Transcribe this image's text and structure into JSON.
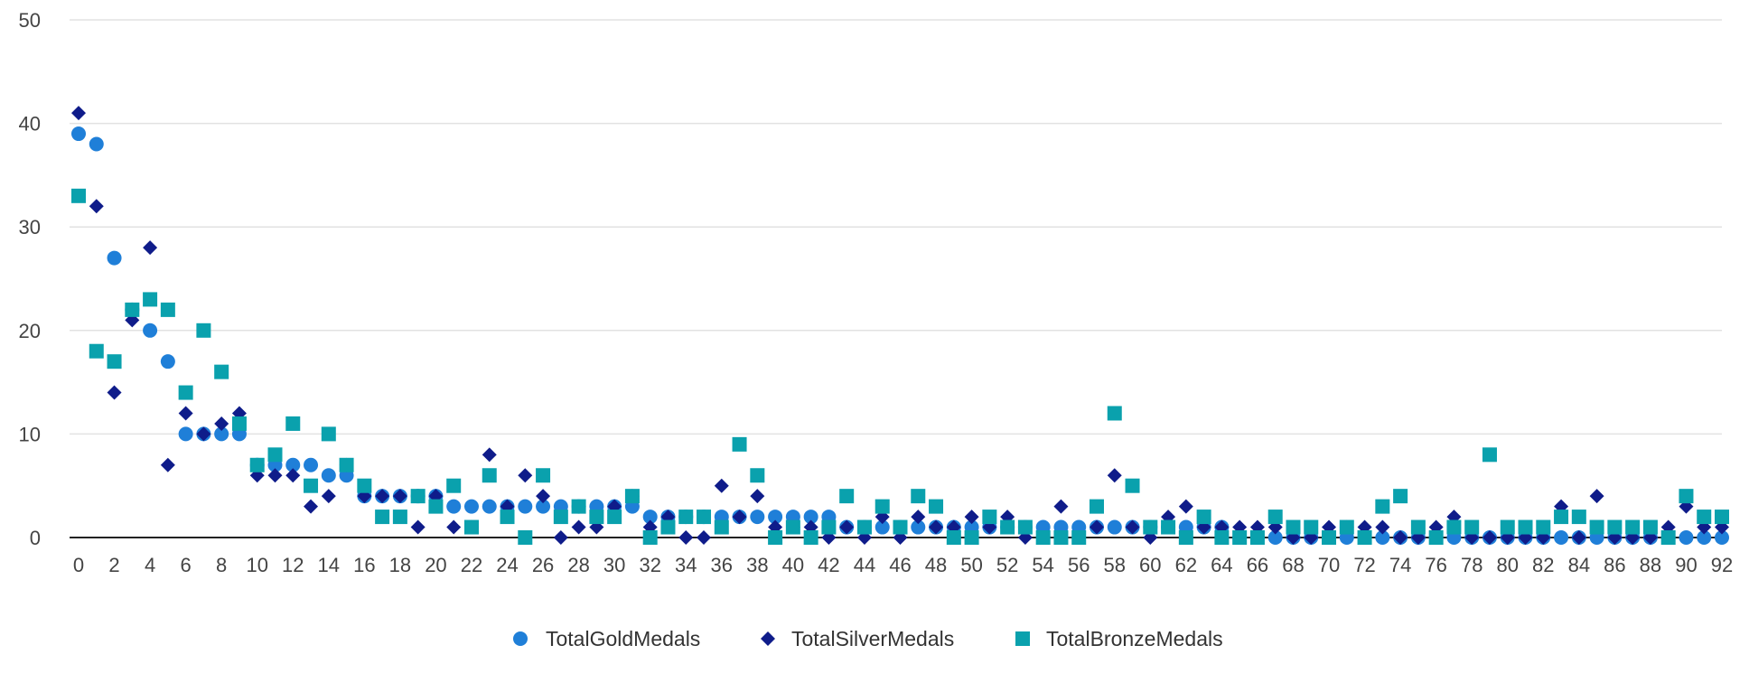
{
  "chart_data": {
    "type": "scatter",
    "title": "",
    "xlabel": "",
    "ylabel": "",
    "xlim": [
      0,
      92
    ],
    "ylim": [
      0,
      50
    ],
    "x_ticks": [
      0,
      2,
      4,
      6,
      8,
      10,
      12,
      14,
      16,
      18,
      20,
      22,
      24,
      26,
      28,
      30,
      32,
      34,
      36,
      38,
      40,
      42,
      44,
      46,
      48,
      50,
      52,
      54,
      56,
      58,
      60,
      62,
      64,
      66,
      68,
      70,
      72,
      74,
      76,
      78,
      80,
      82,
      84,
      86,
      88,
      90,
      92
    ],
    "y_ticks": [
      0,
      10,
      20,
      30,
      40,
      50
    ],
    "grid": true,
    "legend_position": "bottom",
    "series": [
      {
        "name": "TotalGoldMedals",
        "marker": "circle",
        "color": "#1f7fd8",
        "values": [
          39,
          38,
          27,
          22,
          20,
          17,
          10,
          10,
          10,
          10,
          7,
          7,
          7,
          7,
          6,
          6,
          4,
          4,
          4,
          4,
          4,
          3,
          3,
          3,
          3,
          3,
          3,
          3,
          3,
          3,
          3,
          3,
          2,
          2,
          2,
          2,
          2,
          2,
          2,
          2,
          2,
          2,
          2,
          1,
          1,
          1,
          1,
          1,
          1,
          1,
          1,
          1,
          1,
          1,
          1,
          1,
          1,
          1,
          1,
          1,
          1,
          1,
          1,
          1,
          1,
          0,
          0,
          0,
          0,
          0,
          0,
          0,
          0,
          0,
          0,
          0,
          0,
          0,
          0,
          0,
          0,
          0,
          0,
          0,
          0,
          0,
          0,
          0,
          0,
          0,
          0,
          0,
          0
        ]
      },
      {
        "name": "TotalSilverMedals",
        "marker": "diamond",
        "color": "#0f1c8a",
        "values": [
          41,
          32,
          14,
          21,
          28,
          7,
          12,
          10,
          11,
          12,
          6,
          6,
          6,
          3,
          4,
          7,
          4,
          4,
          4,
          1,
          4,
          1,
          1,
          8,
          3,
          6,
          4,
          0,
          1,
          1,
          3,
          4,
          1,
          2,
          0,
          0,
          5,
          2,
          4,
          1,
          1,
          1,
          0,
          1,
          0,
          2,
          0,
          2,
          1,
          1,
          2,
          1,
          2,
          0,
          0,
          3,
          0,
          1,
          6,
          1,
          0,
          2,
          3,
          1,
          1,
          1,
          1,
          1,
          0,
          0,
          1,
          1,
          1,
          1,
          0,
          0,
          1,
          2,
          0,
          0,
          0,
          0,
          0,
          3,
          0,
          4,
          0,
          0,
          0,
          1,
          3,
          1,
          1
        ]
      },
      {
        "name": "TotalBronzeMedals",
        "marker": "square",
        "color": "#0aa1ad",
        "values": [
          33,
          18,
          17,
          22,
          23,
          22,
          14,
          20,
          16,
          11,
          7,
          8,
          11,
          5,
          10,
          7,
          5,
          2,
          2,
          4,
          3,
          5,
          1,
          6,
          2,
          0,
          6,
          2,
          3,
          2,
          2,
          4,
          0,
          1,
          2,
          2,
          1,
          9,
          6,
          0,
          1,
          0,
          1,
          4,
          1,
          3,
          1,
          4,
          3,
          0,
          0,
          2,
          1,
          1,
          0,
          0,
          0,
          3,
          12,
          5,
          1,
          1,
          0,
          2,
          0,
          0,
          0,
          2,
          1,
          1,
          0,
          1,
          0,
          3,
          4,
          1,
          0,
          1,
          1,
          8,
          1,
          1,
          1,
          2,
          2,
          1,
          1,
          1,
          1,
          0,
          4,
          2,
          2
        ]
      }
    ]
  }
}
